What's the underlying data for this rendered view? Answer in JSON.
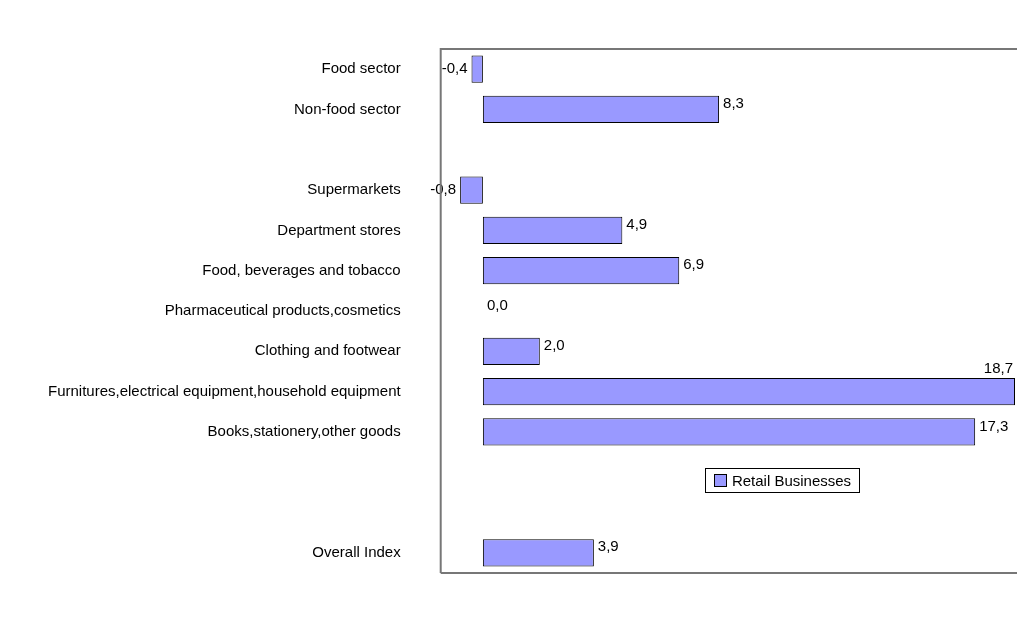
{
  "chart_data": {
    "type": "bar",
    "orientation": "horizontal",
    "categories": [
      "Food sector",
      "Non-food sector",
      null,
      "Supermarkets",
      "Department stores",
      "Food, beverages and tobacco",
      "Pharmaceutical products,cosmetics",
      "Clothing and footwear",
      "Furnitures,electrical equipment,household equipment",
      "Books,stationery,other goods",
      null,
      null,
      "Overall Index"
    ],
    "series": [
      {
        "name": "Retail Businesses",
        "color": "#9999ff",
        "values": [
          -0.4,
          8.3,
          null,
          -0.8,
          4.9,
          6.9,
          0.0,
          2.0,
          18.7,
          17.3,
          null,
          null,
          3.9
        ],
        "value_labels": [
          "-0,4",
          "8,3",
          null,
          "-0,8",
          "4,9",
          "6,9",
          "0,0",
          "2,0",
          "18,7",
          "17,3",
          null,
          null,
          "3,9"
        ]
      }
    ],
    "legend": "bottom right",
    "grid": false
  }
}
